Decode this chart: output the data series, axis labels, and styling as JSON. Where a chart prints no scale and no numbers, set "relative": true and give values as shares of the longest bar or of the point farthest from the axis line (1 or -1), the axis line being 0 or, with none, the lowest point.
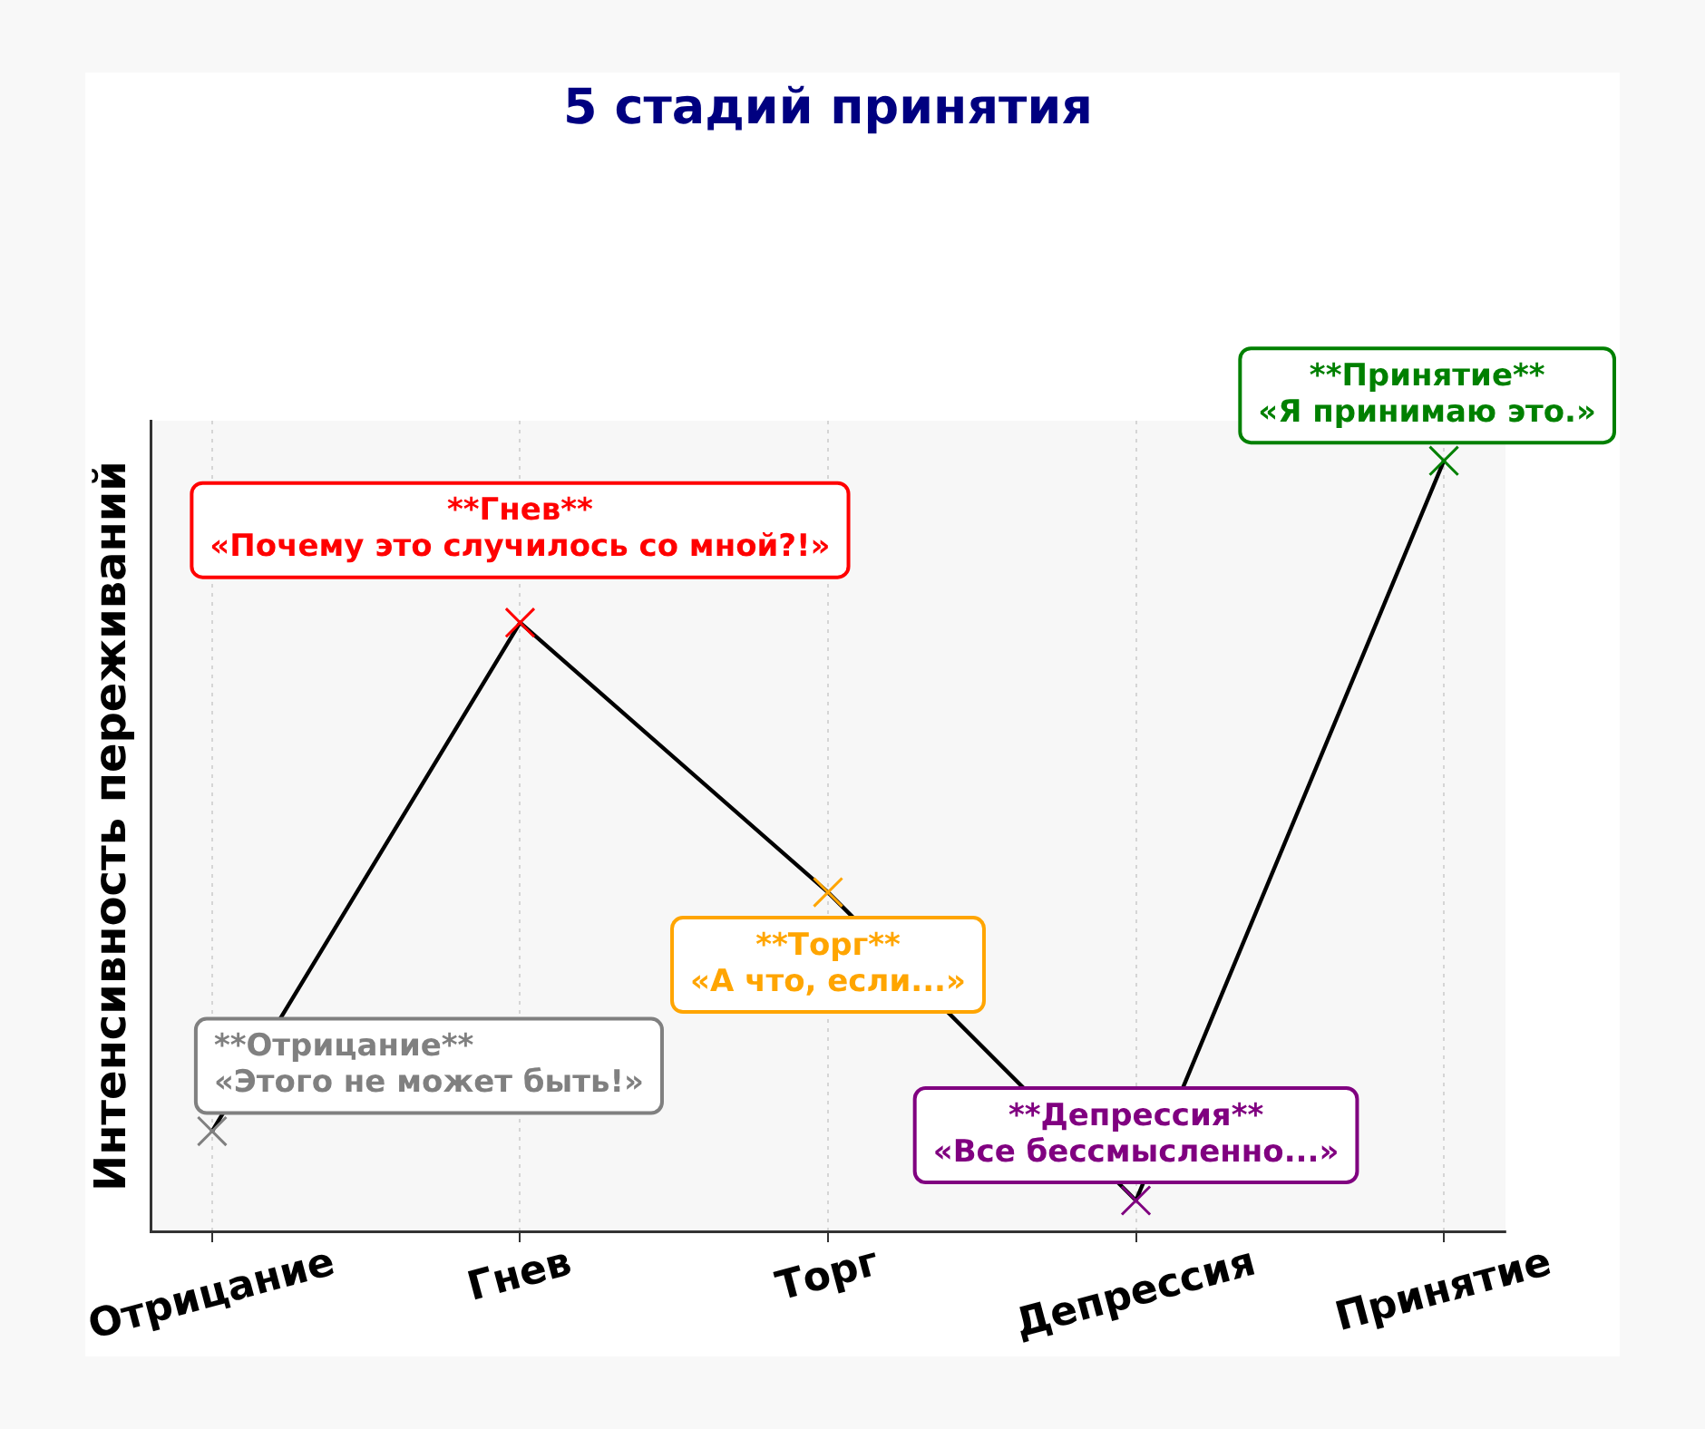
{
  "chart_data": {
    "type": "line",
    "title": "5 стадий принятия",
    "ylabel": "Интенсивность переживаний",
    "categories": [
      "Отрицание",
      "Гнев",
      "Торг",
      "Депрессия",
      "Принятие"
    ],
    "relative": true,
    "series": [
      {
        "color": "#000000",
        "colors": [
          "#808080",
          "#ff0000",
          "#ffa500",
          "#800080",
          "#008000"
        ],
        "values": [
          0.13,
          0.79,
          0.44,
          0.04,
          1
        ]
      }
    ],
    "marker": "cross",
    "line_style": "solid",
    "grid": "x",
    "annotations": [
      {
        "text": "**Отрицание**\n«Этого не может быть!»",
        "x": "Отрицание",
        "y": 0.13
      },
      {
        "text": "**Гнев**\n«Почему это случилось со мной?!»",
        "x": "Гнев",
        "y": 0.79
      },
      {
        "text": "**Торг**\n«А что, если...»",
        "x": "Торг",
        "y": 0.44
      },
      {
        "text": "**Депрессия**\n«Все бессмысленно...»",
        "x": "Депрессия",
        "y": 0.04
      },
      {
        "text": "**Принятие**\n«Я принимаю это.»",
        "x": "Принятие",
        "y": 1
      }
    ]
  }
}
